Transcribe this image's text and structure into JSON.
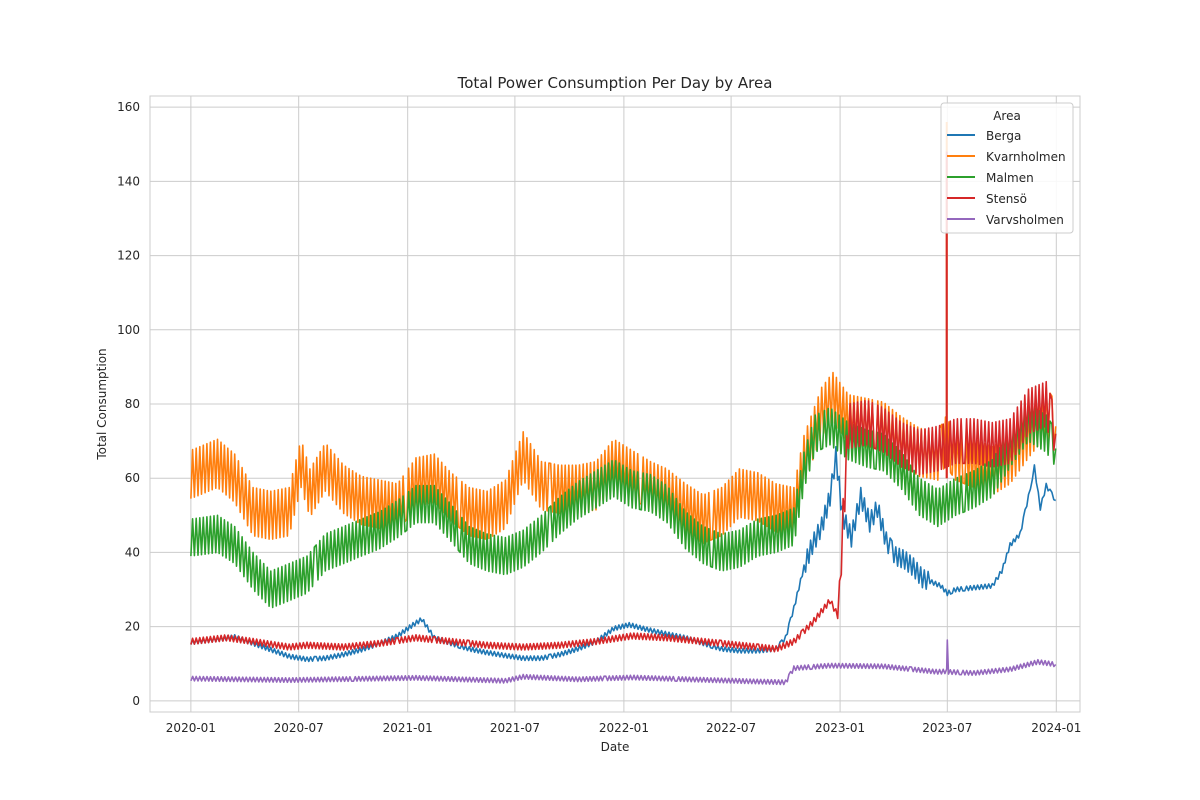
{
  "chart_data": {
    "type": "line",
    "title": "Total Power Consumption Per Day by Area",
    "xlabel": "Date",
    "ylabel": "Total Consumption",
    "ylim": [
      -3,
      163
    ],
    "xlim": [
      "2019-10-24",
      "2024-02-10"
    ],
    "grid": true,
    "legend": {
      "title": "Area",
      "placement": "top-right"
    },
    "x_ticks": [
      "2020-01",
      "2020-07",
      "2021-01",
      "2021-07",
      "2022-01",
      "2022-07",
      "2023-01",
      "2023-07",
      "2024-01"
    ],
    "y_ticks": [
      0,
      20,
      40,
      60,
      80,
      100,
      120,
      140,
      160
    ],
    "series": [
      {
        "name": "Berga",
        "color": "#1f77b4",
        "points": [
          [
            "2020-01-01",
            15.8
          ],
          [
            "2020-02-15",
            16.6
          ],
          [
            "2020-03-15",
            17.2
          ],
          [
            "2020-04-15",
            15.5
          ],
          [
            "2020-05-15",
            13.8
          ],
          [
            "2020-06-15",
            12.0
          ],
          [
            "2020-07-15",
            11.2
          ],
          [
            "2020-08-15",
            11.5
          ],
          [
            "2020-09-15",
            12.5
          ],
          [
            "2020-10-15",
            13.8
          ],
          [
            "2020-11-15",
            15.5
          ],
          [
            "2020-12-15",
            17.5
          ],
          [
            "2021-01-10",
            20.5
          ],
          [
            "2021-01-25",
            22.0
          ],
          [
            "2021-02-15",
            17.0
          ],
          [
            "2021-03-15",
            15.5
          ],
          [
            "2021-04-15",
            14.0
          ],
          [
            "2021-05-15",
            13.0
          ],
          [
            "2021-06-15",
            12.2
          ],
          [
            "2021-07-15",
            11.5
          ],
          [
            "2021-08-15",
            11.5
          ],
          [
            "2021-09-15",
            12.5
          ],
          [
            "2021-10-15",
            14.0
          ],
          [
            "2021-11-15",
            16.0
          ],
          [
            "2021-12-15",
            19.5
          ],
          [
            "2022-01-10",
            20.5
          ],
          [
            "2022-02-15",
            19.0
          ],
          [
            "2022-03-15",
            18.0
          ],
          [
            "2022-04-15",
            17.0
          ],
          [
            "2022-05-15",
            15.5
          ],
          [
            "2022-06-15",
            14.0
          ],
          [
            "2022-07-15",
            13.5
          ],
          [
            "2022-08-15",
            13.5
          ],
          [
            "2022-09-15",
            14.0
          ],
          [
            "2022-10-01",
            17.0
          ],
          [
            "2022-10-15",
            25.0
          ],
          [
            "2022-11-01",
            36.0
          ],
          [
            "2022-11-15",
            42.0
          ],
          [
            "2022-12-01",
            47.0
          ],
          [
            "2022-12-15",
            55.0
          ],
          [
            "2022-12-25",
            66.0
          ],
          [
            "2023-01-05",
            50.0
          ],
          [
            "2023-01-20",
            44.0
          ],
          [
            "2023-02-05",
            55.0
          ],
          [
            "2023-02-20",
            48.0
          ],
          [
            "2023-03-05",
            52.0
          ],
          [
            "2023-03-20",
            43.0
          ],
          [
            "2023-04-05",
            39.0
          ],
          [
            "2023-04-20",
            38.0
          ],
          [
            "2023-05-05",
            36.0
          ],
          [
            "2023-05-20",
            33.0
          ],
          [
            "2023-06-05",
            32.0
          ],
          [
            "2023-06-20",
            31.0
          ],
          [
            "2023-07-01",
            29.0
          ],
          [
            "2023-07-15",
            30.0
          ],
          [
            "2023-08-15",
            30.5
          ],
          [
            "2023-09-15",
            31.0
          ],
          [
            "2023-10-01",
            35.0
          ],
          [
            "2023-10-15",
            42.0
          ],
          [
            "2023-11-01",
            45.0
          ],
          [
            "2023-11-15",
            55.0
          ],
          [
            "2023-11-25",
            63.0
          ],
          [
            "2023-12-05",
            52.0
          ],
          [
            "2023-12-15",
            58.0
          ],
          [
            "2023-12-31",
            54.0
          ]
        ]
      },
      {
        "name": "Kvarnholmen",
        "color": "#ff7f0e",
        "points": [
          [
            "2020-01-01",
            61
          ],
          [
            "2020-02-15",
            64
          ],
          [
            "2020-03-15",
            60
          ],
          [
            "2020-04-15",
            51
          ],
          [
            "2020-05-15",
            50
          ],
          [
            "2020-06-15",
            51
          ],
          [
            "2020-07-05",
            64
          ],
          [
            "2020-07-20",
            56
          ],
          [
            "2020-08-15",
            63
          ],
          [
            "2020-09-15",
            57
          ],
          [
            "2020-10-15",
            54
          ],
          [
            "2020-11-15",
            53
          ],
          [
            "2020-12-15",
            52
          ],
          [
            "2021-01-15",
            59
          ],
          [
            "2021-02-15",
            60
          ],
          [
            "2021-03-15",
            55
          ],
          [
            "2021-04-15",
            51
          ],
          [
            "2021-05-15",
            50
          ],
          [
            "2021-06-15",
            53
          ],
          [
            "2021-07-15",
            66
          ],
          [
            "2021-08-15",
            58
          ],
          [
            "2021-09-15",
            57
          ],
          [
            "2021-10-15",
            57
          ],
          [
            "2021-11-15",
            58
          ],
          [
            "2021-12-15",
            64
          ],
          [
            "2022-01-15",
            61
          ],
          [
            "2022-02-15",
            58
          ],
          [
            "2022-03-15",
            56
          ],
          [
            "2022-04-15",
            52
          ],
          [
            "2022-05-15",
            49
          ],
          [
            "2022-06-15",
            51
          ],
          [
            "2022-07-15",
            56
          ],
          [
            "2022-08-15",
            55
          ],
          [
            "2022-09-15",
            52
          ],
          [
            "2022-10-15",
            51
          ],
          [
            "2022-11-01",
            65
          ],
          [
            "2022-12-01",
            78
          ],
          [
            "2022-12-20",
            82
          ],
          [
            "2023-01-15",
            76
          ],
          [
            "2023-02-15",
            75
          ],
          [
            "2023-03-15",
            74
          ],
          [
            "2023-04-15",
            70
          ],
          [
            "2023-05-15",
            67
          ],
          [
            "2023-06-15",
            66
          ],
          [
            "2023-06-28",
            70
          ],
          [
            "2023-07-15",
            66
          ],
          [
            "2023-08-15",
            64
          ],
          [
            "2023-09-15",
            62
          ],
          [
            "2023-10-15",
            65
          ],
          [
            "2023-11-15",
            72
          ],
          [
            "2023-12-15",
            78
          ],
          [
            "2023-12-31",
            74
          ]
        ]
      },
      {
        "name": "Malmen",
        "color": "#2ca02c",
        "points": [
          [
            "2020-01-01",
            44
          ],
          [
            "2020-02-15",
            45
          ],
          [
            "2020-03-15",
            42
          ],
          [
            "2020-04-15",
            35
          ],
          [
            "2020-05-15",
            30
          ],
          [
            "2020-06-15",
            32
          ],
          [
            "2020-07-15",
            34
          ],
          [
            "2020-08-15",
            40
          ],
          [
            "2020-09-15",
            42
          ],
          [
            "2020-10-15",
            44
          ],
          [
            "2020-11-15",
            46
          ],
          [
            "2020-12-15",
            49
          ],
          [
            "2021-01-15",
            53
          ],
          [
            "2021-02-15",
            53
          ],
          [
            "2021-03-15",
            48
          ],
          [
            "2021-04-15",
            42
          ],
          [
            "2021-05-15",
            40
          ],
          [
            "2021-06-15",
            39
          ],
          [
            "2021-07-15",
            41
          ],
          [
            "2021-08-15",
            45
          ],
          [
            "2021-09-15",
            50
          ],
          [
            "2021-10-15",
            54
          ],
          [
            "2021-11-15",
            57
          ],
          [
            "2021-12-15",
            60
          ],
          [
            "2022-01-15",
            57
          ],
          [
            "2022-02-15",
            56
          ],
          [
            "2022-03-15",
            53
          ],
          [
            "2022-04-15",
            46
          ],
          [
            "2022-05-15",
            42
          ],
          [
            "2022-06-15",
            40
          ],
          [
            "2022-07-15",
            41
          ],
          [
            "2022-08-15",
            44
          ],
          [
            "2022-09-15",
            45
          ],
          [
            "2022-10-15",
            47
          ],
          [
            "2022-11-01",
            62
          ],
          [
            "2022-11-20",
            72
          ],
          [
            "2022-12-15",
            74
          ],
          [
            "2023-01-15",
            70
          ],
          [
            "2023-02-15",
            68
          ],
          [
            "2023-03-15",
            67
          ],
          [
            "2023-04-15",
            62
          ],
          [
            "2023-05-15",
            55
          ],
          [
            "2023-06-15",
            52
          ],
          [
            "2023-07-15",
            55
          ],
          [
            "2023-08-15",
            57
          ],
          [
            "2023-09-15",
            60
          ],
          [
            "2023-10-15",
            68
          ],
          [
            "2023-11-15",
            75
          ],
          [
            "2023-12-15",
            72
          ],
          [
            "2023-12-31",
            68
          ]
        ]
      },
      {
        "name": "Stensö",
        "color": "#d62728",
        "points": [
          [
            "2020-01-01",
            16.0
          ],
          [
            "2020-03-01",
            17.0
          ],
          [
            "2020-04-15",
            16.0
          ],
          [
            "2020-06-15",
            14.5
          ],
          [
            "2020-07-15",
            15.0
          ],
          [
            "2020-09-15",
            14.5
          ],
          [
            "2020-11-15",
            15.5
          ],
          [
            "2021-01-15",
            17.0
          ],
          [
            "2021-03-15",
            16.0
          ],
          [
            "2021-05-15",
            15.0
          ],
          [
            "2021-07-15",
            14.5
          ],
          [
            "2021-09-15",
            15.0
          ],
          [
            "2021-11-15",
            16.0
          ],
          [
            "2022-01-15",
            17.5
          ],
          [
            "2022-03-15",
            17.0
          ],
          [
            "2022-05-15",
            16.0
          ],
          [
            "2022-07-15",
            15.0
          ],
          [
            "2022-09-15",
            14.0
          ],
          [
            "2022-10-15",
            16.0
          ],
          [
            "2022-11-15",
            21.0
          ],
          [
            "2022-12-15",
            27.0
          ],
          [
            "2022-12-28",
            23.0
          ],
          [
            "2023-01-15",
            74.0
          ],
          [
            "2023-02-15",
            75.0
          ],
          [
            "2023-03-15",
            73.0
          ],
          [
            "2023-04-15",
            69.0
          ],
          [
            "2023-05-15",
            67.0
          ],
          [
            "2023-06-15",
            68.0
          ],
          [
            "2023-07-15",
            70.0
          ],
          [
            "2023-08-15",
            70.0
          ],
          [
            "2023-09-15",
            69.0
          ],
          [
            "2023-10-15",
            70.0
          ],
          [
            "2023-11-15",
            78.0
          ],
          [
            "2023-12-15",
            80.0
          ],
          [
            "2023-12-31",
            72.0
          ]
        ]
      },
      {
        "name": "Varvsholmen",
        "color": "#9467bd",
        "points": [
          [
            "2020-01-01",
            6.0
          ],
          [
            "2020-06-15",
            5.6
          ],
          [
            "2021-01-15",
            6.2
          ],
          [
            "2021-06-15",
            5.4
          ],
          [
            "2021-07-15",
            6.5
          ],
          [
            "2021-10-15",
            5.8
          ],
          [
            "2022-01-15",
            6.3
          ],
          [
            "2022-06-15",
            5.5
          ],
          [
            "2022-10-01",
            5.0
          ],
          [
            "2022-10-15",
            8.8
          ],
          [
            "2022-12-15",
            9.5
          ],
          [
            "2023-03-15",
            9.3
          ],
          [
            "2023-06-15",
            7.8
          ],
          [
            "2023-06-30",
            8.0
          ],
          [
            "2023-07-01",
            17.0
          ],
          [
            "2023-07-03",
            7.8
          ],
          [
            "2023-08-15",
            7.5
          ],
          [
            "2023-10-15",
            8.5
          ],
          [
            "2023-12-01",
            10.5
          ],
          [
            "2023-12-31",
            9.8
          ]
        ]
      }
    ],
    "spikes": [
      {
        "series": "Kvarnholmen",
        "date": "2023-06-30",
        "value": 156
      },
      {
        "series": "Stensö",
        "date": "2023-06-30",
        "value": 148
      }
    ]
  }
}
